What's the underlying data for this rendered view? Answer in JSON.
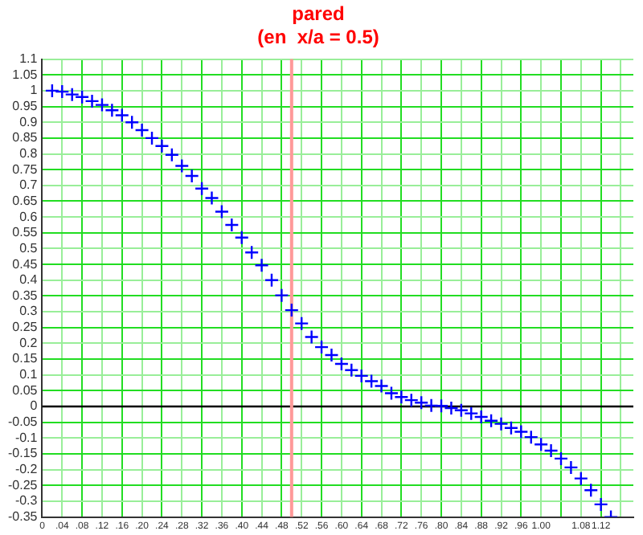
{
  "chart_data": {
    "type": "scatter",
    "title": "pared",
    "subtitle": "(en  x/a = 0.5)",
    "x": [
      0.02,
      0.04,
      0.06,
      0.08,
      0.1,
      0.12,
      0.14,
      0.16,
      0.18,
      0.2,
      0.22,
      0.24,
      0.26,
      0.28,
      0.3,
      0.32,
      0.34,
      0.36,
      0.38,
      0.4,
      0.42,
      0.44,
      0.46,
      0.48,
      0.5,
      0.52,
      0.54,
      0.56,
      0.58,
      0.6,
      0.62,
      0.64,
      0.66,
      0.68,
      0.7,
      0.72,
      0.74,
      0.76,
      0.78,
      0.8,
      0.82,
      0.84,
      0.86,
      0.88,
      0.9,
      0.92,
      0.94,
      0.96,
      0.98,
      1.0,
      1.02,
      1.04,
      1.06,
      1.08,
      1.1,
      1.12,
      1.14
    ],
    "series": [
      {
        "color": "#0000ff",
        "values": [
          1.0,
          0.997,
          0.988,
          0.98,
          0.967,
          0.955,
          0.938,
          0.922,
          0.9,
          0.875,
          0.85,
          0.825,
          0.797,
          0.762,
          0.73,
          0.69,
          0.66,
          0.617,
          0.575,
          0.535,
          0.488,
          0.447,
          0.4,
          0.352,
          0.305,
          0.263,
          0.22,
          0.188,
          0.163,
          0.135,
          0.115,
          0.097,
          0.08,
          0.065,
          0.042,
          0.03,
          0.02,
          0.012,
          0.003,
          0.002,
          -0.005,
          -0.012,
          -0.022,
          -0.033,
          -0.045,
          -0.055,
          -0.068,
          -0.08,
          -0.097,
          -0.12,
          -0.14,
          -0.165,
          -0.193,
          -0.228,
          -0.265,
          -0.31,
          -0.35
        ]
      }
    ],
    "xlim": [
      0,
      1.185
    ],
    "xticks": [
      {
        "value": 0,
        "label": "0"
      },
      {
        "value": 0.04,
        "label": ".04"
      },
      {
        "value": 0.08,
        "label": ".08"
      },
      {
        "value": 0.12,
        "label": ".12"
      },
      {
        "value": 0.16,
        "label": ".16"
      },
      {
        "value": 0.2,
        "label": ".20"
      },
      {
        "value": 0.24,
        "label": ".24"
      },
      {
        "value": 0.28,
        "label": ".28"
      },
      {
        "value": 0.32,
        "label": ".32"
      },
      {
        "value": 0.36,
        "label": ".36"
      },
      {
        "value": 0.4,
        "label": ".40"
      },
      {
        "value": 0.44,
        "label": ".44"
      },
      {
        "value": 0.48,
        "label": ".48"
      },
      {
        "value": 0.52,
        "label": ".52"
      },
      {
        "value": 0.56,
        "label": ".56"
      },
      {
        "value": 0.6,
        "label": ".60"
      },
      {
        "value": 0.64,
        "label": ".64"
      },
      {
        "value": 0.68,
        "label": ".68"
      },
      {
        "value": 0.72,
        "label": ".72"
      },
      {
        "value": 0.76,
        "label": ".76"
      },
      {
        "value": 0.8,
        "label": ".80"
      },
      {
        "value": 0.84,
        "label": ".84"
      },
      {
        "value": 0.88,
        "label": ".88"
      },
      {
        "value": 0.92,
        "label": ".92"
      },
      {
        "value": 0.96,
        "label": ".96"
      },
      {
        "value": 1.0,
        "label": "1.00"
      },
      {
        "value": 1.04,
        "label": null
      },
      {
        "value": 1.08,
        "label": "1.08"
      },
      {
        "value": 1.12,
        "label": "1.12"
      },
      {
        "value": 1.16,
        "label": null
      }
    ],
    "ylim": [
      -0.35,
      1.1
    ],
    "yticks": [
      -0.35,
      -0.3,
      -0.25,
      -0.2,
      -0.15,
      -0.1,
      -0.05,
      0,
      0.05,
      0.1,
      0.15,
      0.2,
      0.25,
      0.3,
      0.35,
      0.4,
      0.45,
      0.5,
      0.55,
      0.6,
      0.65,
      0.7,
      0.75,
      0.8,
      0.85,
      0.9,
      0.95,
      1,
      1.05,
      1.1
    ],
    "ref_lines": [
      {
        "axis": "y",
        "value": 0,
        "color": "#000000"
      },
      {
        "axis": "x",
        "value": 0.5,
        "color": "#ff9999"
      }
    ],
    "grid": true,
    "legend": false,
    "marker": "cross"
  }
}
